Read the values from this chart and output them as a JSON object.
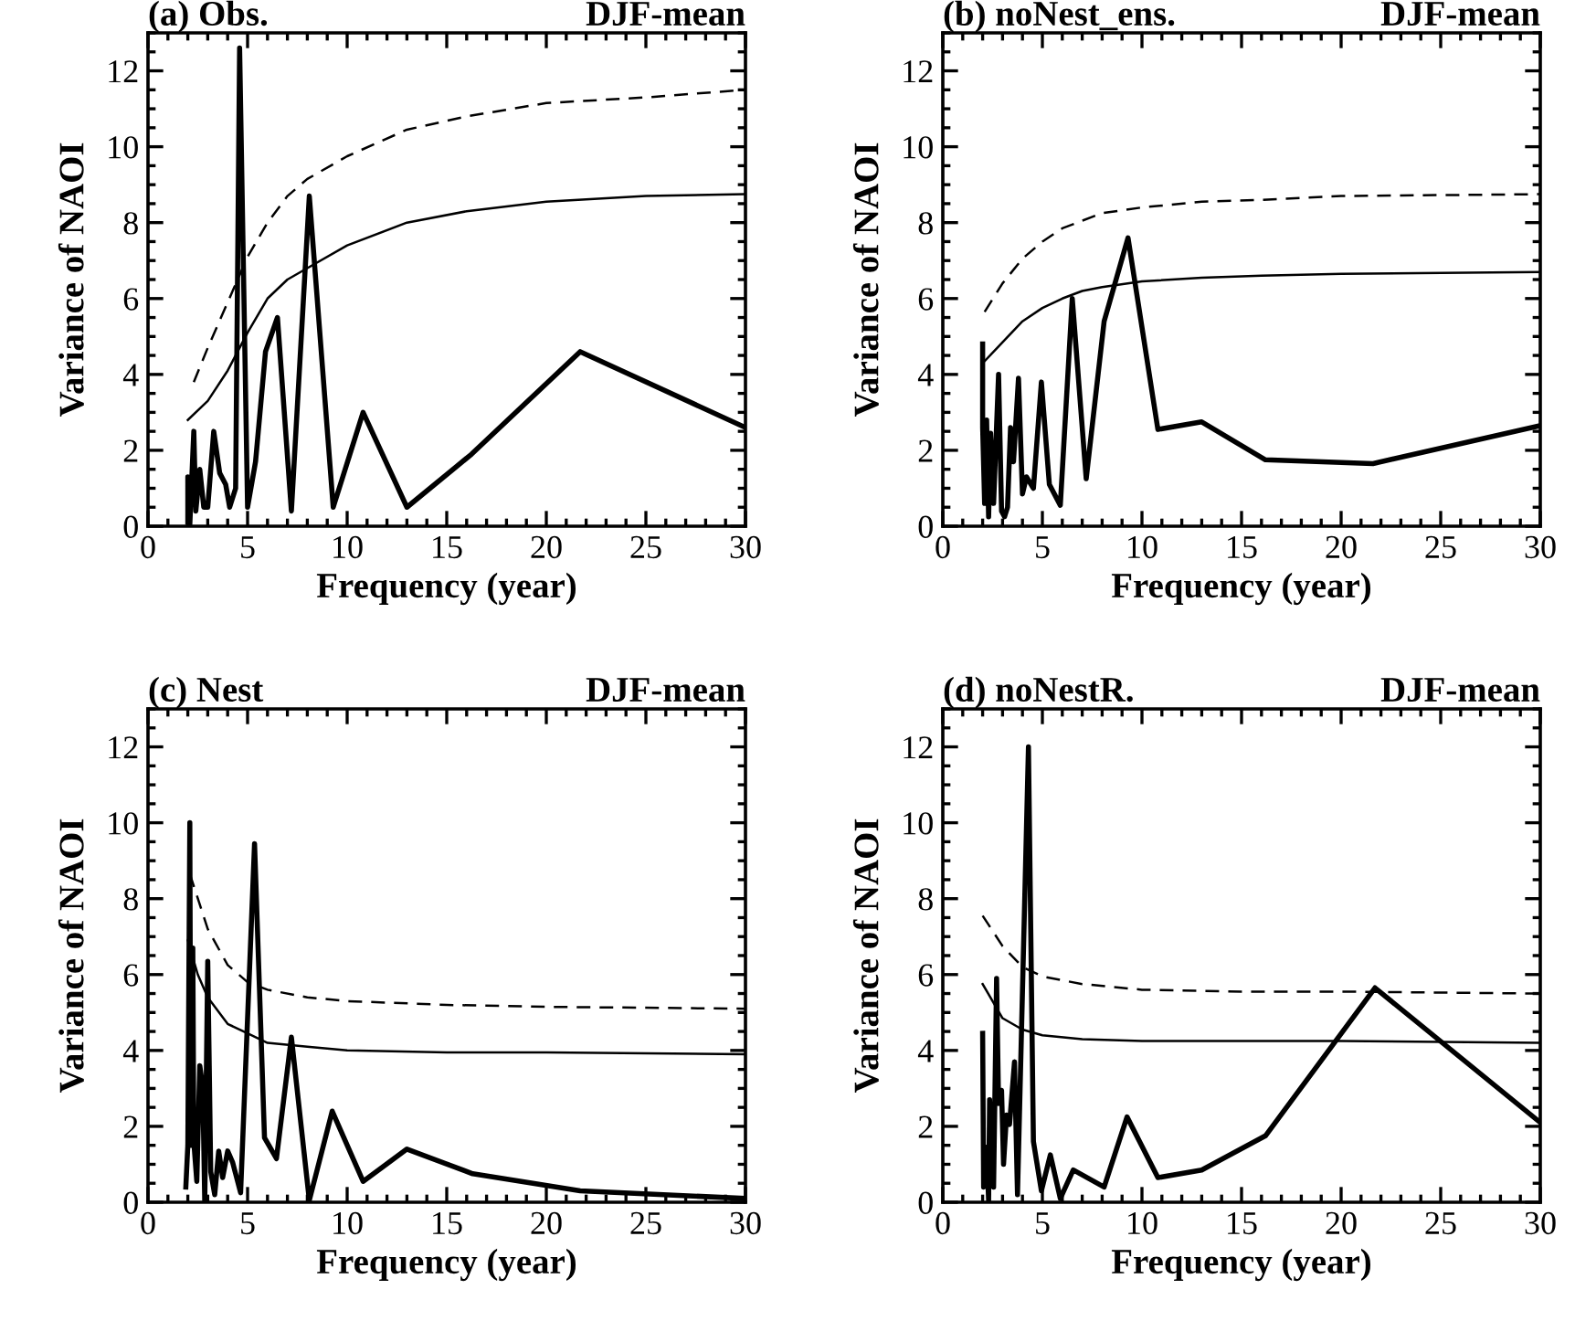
{
  "chart_data": [
    {
      "type": "line",
      "title": "(a) Obs.",
      "subtitle": "DJF-mean",
      "xlabel": "Frequency (year)",
      "ylabel": "Variance of NAOI",
      "xlim": [
        0,
        30
      ],
      "xticks": [
        0,
        5,
        10,
        15,
        20,
        25,
        30
      ],
      "ylim": [
        0,
        13
      ],
      "yticks": [
        0,
        2,
        4,
        6,
        8,
        10,
        12
      ],
      "grid": false,
      "legend": false,
      "series": [
        {
          "color": "#000000",
          "line_style": "solid",
          "x": [
            2.0,
            2.0,
            2.1,
            2.3,
            2.4,
            2.6,
            2.8,
            3.0,
            3.3,
            3.6,
            3.9,
            4.1,
            4.4,
            4.6,
            5.0,
            5.4,
            5.9,
            6.5,
            7.2,
            8.1,
            9.3,
            10.8,
            13.0,
            16.25,
            21.7,
            30
          ],
          "values": [
            0.1,
            1.3,
            0.05,
            2.5,
            0.4,
            1.5,
            0.5,
            0.5,
            2.5,
            1.4,
            1.1,
            0.5,
            1.0,
            12.6,
            0.5,
            1.7,
            4.6,
            5.5,
            0.4,
            8.7,
            0.5,
            3.0,
            0.5,
            1.9,
            4.6,
            2.6
          ]
        },
        {
          "color": "#000000",
          "line_style": "solid",
          "x": [
            2,
            3,
            4,
            5,
            6,
            7,
            8,
            10,
            13,
            16,
            20,
            25,
            30
          ],
          "values": [
            2.8,
            3.3,
            4.1,
            5.1,
            6.0,
            6.5,
            6.8,
            7.4,
            8.0,
            8.3,
            8.55,
            8.7,
            8.75
          ]
        },
        {
          "color": "#000000",
          "line_style": "dashed",
          "x": [
            2.3,
            3,
            4,
            5,
            6,
            7,
            8,
            10,
            13,
            16,
            20,
            25,
            30
          ],
          "values": [
            3.8,
            4.7,
            5.9,
            7.1,
            8.0,
            8.7,
            9.15,
            9.75,
            10.45,
            10.8,
            11.15,
            11.3,
            11.5
          ]
        }
      ]
    },
    {
      "type": "line",
      "title": "(b) noNest_ens.",
      "subtitle": "DJF-mean",
      "xlabel": "Frequency (year)",
      "ylabel": "Variance of NAOI",
      "xlim": [
        0,
        30
      ],
      "xticks": [
        0,
        5,
        10,
        15,
        20,
        25,
        30
      ],
      "ylim": [
        0,
        13
      ],
      "yticks": [
        0,
        2,
        4,
        6,
        8,
        10,
        12
      ],
      "grid": false,
      "legend": false,
      "series": [
        {
          "color": "#000000",
          "line_style": "solid",
          "x": [
            2.0,
            2.0,
            2.1,
            2.2,
            2.3,
            2.4,
            2.55,
            2.8,
            2.95,
            3.1,
            3.25,
            3.4,
            3.55,
            3.8,
            4.0,
            4.2,
            4.55,
            4.95,
            5.35,
            5.9,
            6.5,
            7.2,
            8.1,
            9.3,
            10.8,
            13.0,
            16.2,
            21.6,
            30
          ],
          "values": [
            4.8,
            2.6,
            0.6,
            2.8,
            0.25,
            2.45,
            0.6,
            4.0,
            0.4,
            0.25,
            0.5,
            2.6,
            1.7,
            3.9,
            0.85,
            1.3,
            1.0,
            3.8,
            1.1,
            0.55,
            6.0,
            1.25,
            5.4,
            7.6,
            2.55,
            2.75,
            1.75,
            1.65,
            2.65
          ]
        },
        {
          "color": "#000000",
          "line_style": "solid",
          "x": [
            2.1,
            3,
            4,
            5,
            6,
            7,
            8,
            10,
            13,
            16,
            20,
            30
          ],
          "values": [
            4.35,
            4.85,
            5.4,
            5.75,
            6.0,
            6.2,
            6.3,
            6.45,
            6.55,
            6.6,
            6.65,
            6.7
          ]
        },
        {
          "color": "#000000",
          "line_style": "dashed",
          "x": [
            2.1,
            3,
            4,
            5,
            6,
            7,
            8,
            10,
            13,
            16,
            20,
            30
          ],
          "values": [
            5.65,
            6.4,
            7.05,
            7.5,
            7.85,
            8.05,
            8.25,
            8.4,
            8.55,
            8.6,
            8.7,
            8.75
          ]
        }
      ]
    },
    {
      "type": "line",
      "title": "(c) Nest",
      "subtitle": "DJF-mean",
      "xlabel": "Frequency (year)",
      "ylabel": "Variance of NAOI",
      "xlim": [
        0,
        30
      ],
      "xticks": [
        0,
        5,
        10,
        15,
        20,
        25,
        30
      ],
      "ylim": [
        0,
        13
      ],
      "yticks": [
        0,
        2,
        4,
        6,
        8,
        10,
        12
      ],
      "grid": false,
      "legend": false,
      "series": [
        {
          "color": "#000000",
          "line_style": "solid",
          "x": [
            1.9,
            2.0,
            2.1,
            2.15,
            2.25,
            2.3,
            2.45,
            2.6,
            2.75,
            2.85,
            3.0,
            3.15,
            3.35,
            3.55,
            3.75,
            4.0,
            4.25,
            4.65,
            5.35,
            5.85,
            6.45,
            7.2,
            8.1,
            9.25,
            10.8,
            13.0,
            16.3,
            21.7,
            30
          ],
          "values": [
            0.4,
            1.5,
            10.0,
            1.5,
            6.7,
            1.6,
            0.55,
            3.6,
            3.05,
            0,
            6.35,
            0.8,
            0.2,
            1.35,
            0.65,
            1.35,
            1.05,
            0.25,
            9.45,
            1.7,
            1.15,
            4.35,
            0.05,
            2.4,
            0.55,
            1.4,
            0.75,
            0.3,
            0.1
          ]
        },
        {
          "color": "#000000",
          "line_style": "solid",
          "x": [
            2.0,
            2.5,
            3,
            4,
            5,
            6,
            8,
            10,
            15,
            20,
            30
          ],
          "values": [
            6.9,
            6.0,
            5.4,
            4.7,
            4.45,
            4.2,
            4.1,
            4.0,
            3.95,
            3.95,
            3.9
          ]
        },
        {
          "color": "#000000",
          "line_style": "dashed",
          "x": [
            2.1,
            3,
            4,
            5,
            6,
            8,
            10,
            15,
            20,
            30
          ],
          "values": [
            8.65,
            7.2,
            6.25,
            5.8,
            5.6,
            5.4,
            5.3,
            5.2,
            5.15,
            5.1
          ]
        }
      ]
    },
    {
      "type": "line",
      "title": "(d) noNestR.",
      "subtitle": "DJF-mean",
      "xlabel": "Frequency (year)",
      "ylabel": "Variance of NAOI",
      "xlim": [
        0,
        30
      ],
      "xticks": [
        0,
        5,
        10,
        15,
        20,
        25,
        30
      ],
      "ylim": [
        0,
        13
      ],
      "yticks": [
        0,
        2,
        4,
        6,
        8,
        10,
        12
      ],
      "grid": false,
      "legend": false,
      "series": [
        {
          "color": "#000000",
          "line_style": "solid",
          "x": [
            2.0,
            2.05,
            2.2,
            2.3,
            2.35,
            2.55,
            2.7,
            2.8,
            2.95,
            3.05,
            3.2,
            3.35,
            3.6,
            3.75,
            4.3,
            4.55,
            4.95,
            5.4,
            5.9,
            6.55,
            8.1,
            9.25,
            10.8,
            13.0,
            16.2,
            21.7,
            30
          ],
          "values": [
            4.45,
            0.4,
            1.45,
            0.05,
            2.7,
            0.4,
            5.9,
            2.6,
            2.95,
            1.0,
            2.3,
            2.05,
            3.7,
            0.2,
            12.0,
            1.6,
            0.3,
            1.25,
            0.1,
            0.85,
            0.4,
            2.25,
            0.65,
            0.85,
            1.75,
            5.65,
            2.1
          ]
        },
        {
          "color": "#000000",
          "line_style": "solid",
          "x": [
            2,
            3,
            4,
            5,
            7,
            10,
            15,
            20,
            30
          ],
          "values": [
            5.75,
            4.85,
            4.55,
            4.4,
            4.3,
            4.25,
            4.25,
            4.25,
            4.2
          ]
        },
        {
          "color": "#000000",
          "line_style": "dashed",
          "x": [
            2,
            3,
            4,
            5,
            7,
            10,
            15,
            20,
            30
          ],
          "values": [
            7.55,
            6.75,
            6.2,
            5.95,
            5.75,
            5.6,
            5.55,
            5.55,
            5.5
          ]
        }
      ]
    }
  ]
}
